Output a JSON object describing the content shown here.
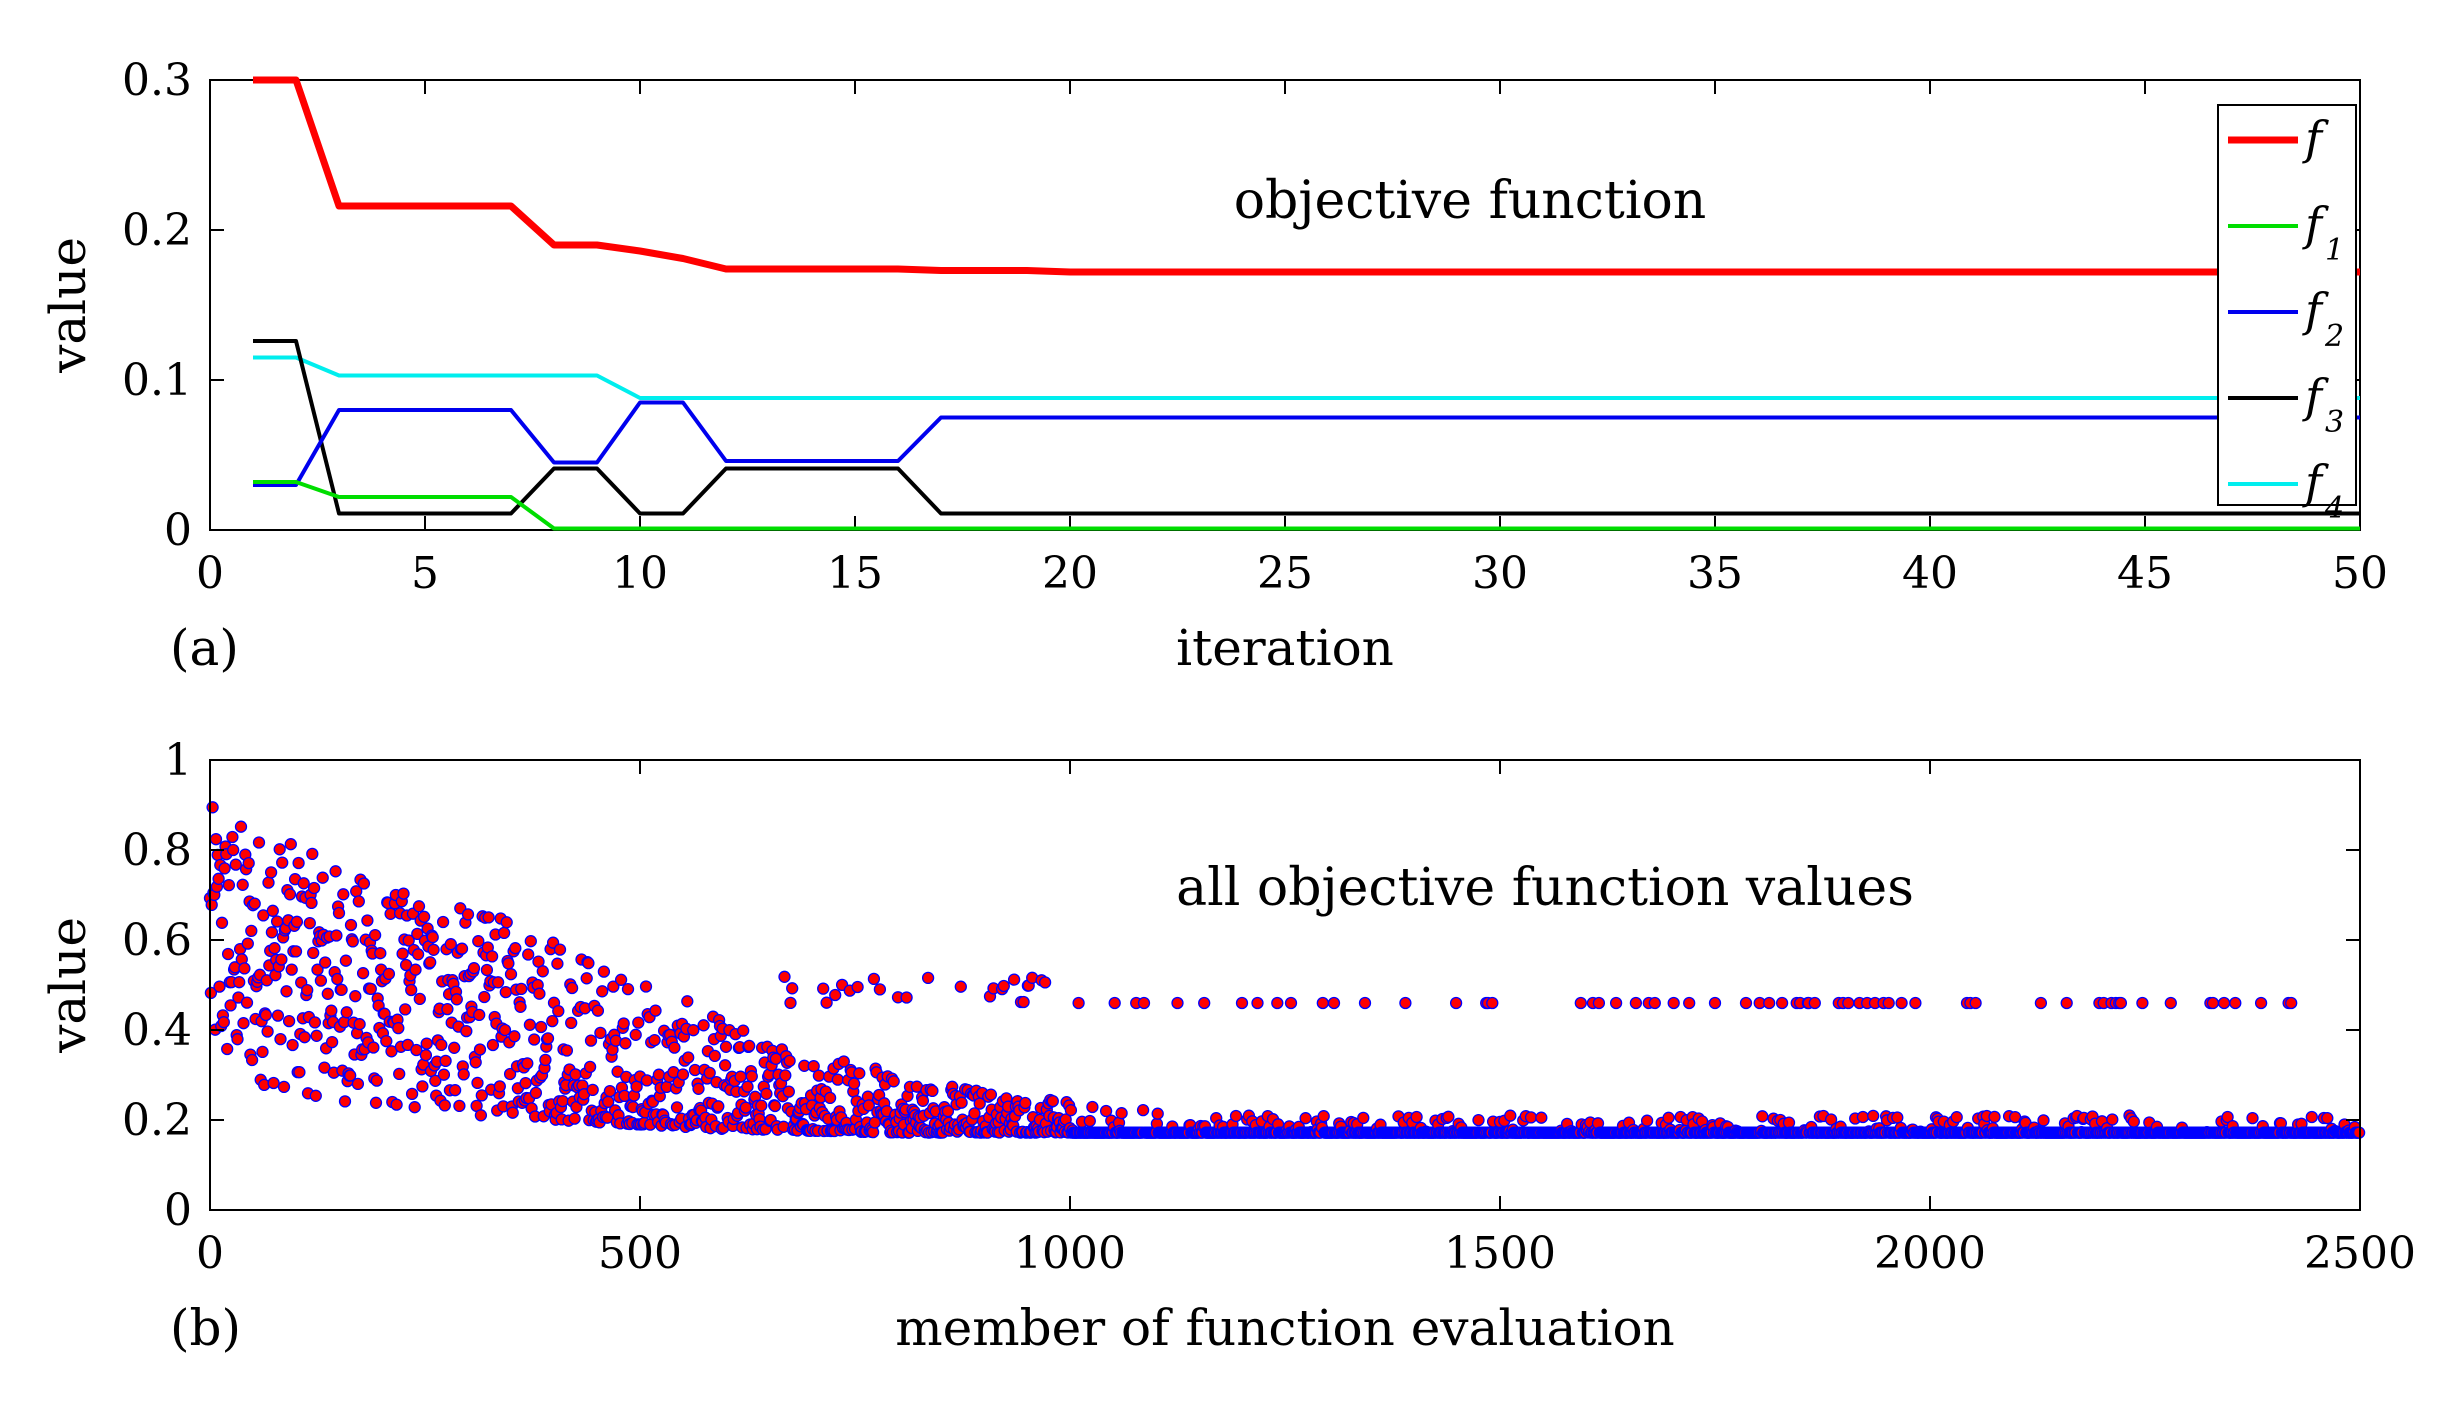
{
  "chart_data": [
    {
      "id": "a",
      "type": "line",
      "panel_label": "(a)",
      "annotation": "objective function",
      "xlabel": "iteration",
      "ylabel": "value",
      "xlim": [
        0,
        50
      ],
      "ylim": [
        0,
        0.3
      ],
      "xticks": [
        "0",
        "5",
        "10",
        "15",
        "20",
        "25",
        "30",
        "35",
        "40",
        "45",
        "50"
      ],
      "yticks": [
        "0",
        "0.1",
        "0.2",
        "0.3"
      ],
      "x": [
        1,
        2,
        3,
        4,
        5,
        6,
        7,
        8,
        9,
        10,
        11,
        12,
        13,
        14,
        15,
        16,
        17,
        18,
        19,
        20,
        21,
        22,
        23,
        24,
        25,
        26,
        27,
        28,
        29,
        30,
        31,
        32,
        33,
        34,
        35,
        36,
        37,
        38,
        39,
        40,
        41,
        42,
        43,
        44,
        45,
        46,
        47,
        48,
        49,
        50
      ],
      "legend": [
        {
          "label": "f",
          "sub": "",
          "color": "#ff0000"
        },
        {
          "label": "f",
          "sub": "1",
          "color": "#00dd00"
        },
        {
          "label": "f",
          "sub": "2",
          "color": "#0000ee"
        },
        {
          "label": "f",
          "sub": "3",
          "color": "#000000"
        },
        {
          "label": "f",
          "sub": "4",
          "color": "#00eeee"
        }
      ],
      "series": [
        {
          "name": "f",
          "color": "#ff0000",
          "width": 7,
          "values": [
            0.3,
            0.3,
            0.216,
            0.216,
            0.216,
            0.216,
            0.216,
            0.19,
            0.19,
            0.186,
            0.181,
            0.174,
            0.174,
            0.174,
            0.174,
            0.174,
            0.173,
            0.173,
            0.173,
            0.172,
            0.172,
            0.172,
            0.172,
            0.172,
            0.172,
            0.172,
            0.172,
            0.172,
            0.172,
            0.172,
            0.172,
            0.172,
            0.172,
            0.172,
            0.172,
            0.172,
            0.172,
            0.172,
            0.172,
            0.172,
            0.172,
            0.172,
            0.172,
            0.172,
            0.172,
            0.172,
            0.172,
            0.172,
            0.172,
            0.172
          ]
        },
        {
          "name": "f1",
          "color": "#00dd00",
          "width": 4,
          "values": [
            0.032,
            0.032,
            0.022,
            0.022,
            0.022,
            0.022,
            0.022,
            0.001,
            0.001,
            0.001,
            0.001,
            0.001,
            0.001,
            0.001,
            0.001,
            0.001,
            0.001,
            0.001,
            0.001,
            0.001,
            0.001,
            0.001,
            0.001,
            0.001,
            0.001,
            0.001,
            0.001,
            0.001,
            0.001,
            0.001,
            0.001,
            0.001,
            0.001,
            0.001,
            0.001,
            0.001,
            0.001,
            0.001,
            0.001,
            0.001,
            0.001,
            0.001,
            0.001,
            0.001,
            0.001,
            0.001,
            0.001,
            0.001,
            0.001,
            0.001
          ]
        },
        {
          "name": "f2",
          "color": "#0000ee",
          "width": 4,
          "values": [
            0.03,
            0.03,
            0.08,
            0.08,
            0.08,
            0.08,
            0.08,
            0.045,
            0.045,
            0.085,
            0.085,
            0.046,
            0.046,
            0.046,
            0.046,
            0.046,
            0.075,
            0.075,
            0.075,
            0.075,
            0.075,
            0.075,
            0.075,
            0.075,
            0.075,
            0.075,
            0.075,
            0.075,
            0.075,
            0.075,
            0.075,
            0.075,
            0.075,
            0.075,
            0.075,
            0.075,
            0.075,
            0.075,
            0.075,
            0.075,
            0.075,
            0.075,
            0.075,
            0.075,
            0.075,
            0.075,
            0.075,
            0.075,
            0.075,
            0.075
          ]
        },
        {
          "name": "f3",
          "color": "#000000",
          "width": 4,
          "values": [
            0.126,
            0.126,
            0.011,
            0.011,
            0.011,
            0.011,
            0.011,
            0.041,
            0.041,
            0.011,
            0.011,
            0.041,
            0.041,
            0.041,
            0.041,
            0.041,
            0.011,
            0.011,
            0.011,
            0.011,
            0.011,
            0.011,
            0.011,
            0.011,
            0.011,
            0.011,
            0.011,
            0.011,
            0.011,
            0.011,
            0.011,
            0.011,
            0.011,
            0.011,
            0.011,
            0.011,
            0.011,
            0.011,
            0.011,
            0.011,
            0.011,
            0.011,
            0.011,
            0.011,
            0.011,
            0.011,
            0.011,
            0.011,
            0.011,
            0.011
          ]
        },
        {
          "name": "f4",
          "color": "#00eeee",
          "width": 4,
          "values": [
            0.115,
            0.115,
            0.103,
            0.103,
            0.103,
            0.103,
            0.103,
            0.103,
            0.103,
            0.088,
            0.088,
            0.088,
            0.088,
            0.088,
            0.088,
            0.088,
            0.088,
            0.088,
            0.088,
            0.088,
            0.088,
            0.088,
            0.088,
            0.088,
            0.088,
            0.088,
            0.088,
            0.088,
            0.088,
            0.088,
            0.088,
            0.088,
            0.088,
            0.088,
            0.088,
            0.088,
            0.088,
            0.088,
            0.088,
            0.088,
            0.088,
            0.088,
            0.088,
            0.088,
            0.088,
            0.088,
            0.088,
            0.088,
            0.088,
            0.088
          ]
        }
      ]
    },
    {
      "id": "b",
      "type": "scatter",
      "panel_label": "(b)",
      "annotation": "all objective function values",
      "xlabel": "member of function evaluation",
      "ylabel": "value",
      "xlim": [
        0,
        2500
      ],
      "ylim": [
        0,
        1
      ],
      "xticks": [
        "0",
        "500",
        "1000",
        "1500",
        "2000",
        "2500"
      ],
      "yticks": [
        "0",
        "0.2",
        "0.4",
        "0.6",
        "0.8",
        "1"
      ],
      "marker_fill": "#ff0000",
      "marker_edge": "#0000ff",
      "n_points": 2500,
      "trend": {
        "x": [
          0,
          200,
          400,
          600,
          800,
          1000,
          1200,
          2500
        ],
        "upper": [
          0.9,
          0.72,
          0.62,
          0.42,
          0.3,
          0.24,
          0.21,
          0.21
        ],
        "lower": [
          0.3,
          0.22,
          0.2,
          0.18,
          0.172,
          0.172,
          0.172,
          0.172
        ]
      },
      "floor_value": 0.172,
      "outlier_band": 0.46
    }
  ]
}
